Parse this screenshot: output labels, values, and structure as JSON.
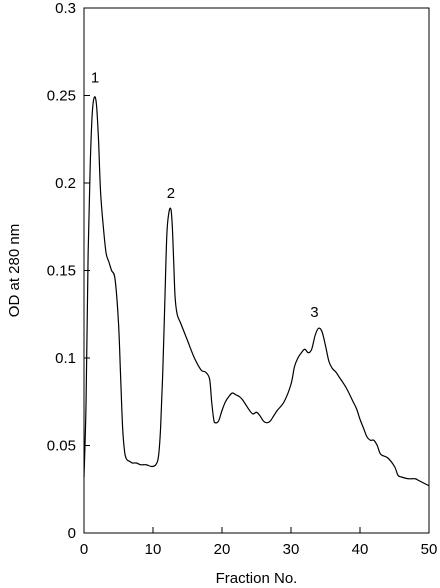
{
  "chart_data": {
    "type": "line",
    "title": "",
    "xlabel": "Fraction No.",
    "ylabel": "OD at 280 nm",
    "xlim": [
      0,
      50
    ],
    "ylim": [
      0,
      0.3
    ],
    "grid": false,
    "x_ticks": [
      0,
      10,
      20,
      30,
      40,
      50
    ],
    "y_ticks": [
      0,
      0.05,
      0.1,
      0.15,
      0.2,
      0.25,
      0.3
    ],
    "x_tick_labels": [
      "0",
      "10",
      "20",
      "30",
      "40",
      "50"
    ],
    "y_tick_labels": [
      "0",
      "0.05",
      "0.1",
      "0.15",
      "0.2",
      "0.25",
      "0.3"
    ],
    "annotations": [
      {
        "text": "1",
        "x": 1.6,
        "y": 0.254
      },
      {
        "text": "2",
        "x": 12.6,
        "y": 0.188
      },
      {
        "text": "3",
        "x": 33.4,
        "y": 0.12
      }
    ],
    "series": [
      {
        "x": [
          0,
          0.3,
          0.6,
          0.9,
          1.2,
          1.5,
          1.8,
          2.1,
          2.4,
          2.8,
          3.2,
          3.6,
          4.0,
          4.5,
          5.0,
          5.3,
          5.6,
          5.9,
          6.2,
          6.6,
          7.0,
          7.6,
          8.2,
          9.0,
          9.8,
          10.4,
          10.8,
          11.1,
          11.4,
          11.7,
          12.0,
          12.3,
          12.6,
          12.8,
          13.0,
          13.2,
          13.5,
          14.0,
          14.5,
          15.0,
          16.0,
          17.0,
          17.6,
          18.2,
          18.5,
          18.8,
          19.0,
          19.5,
          20.0,
          20.5,
          21.0,
          21.5,
          22.0,
          22.5,
          23.0,
          24.0,
          24.5,
          25.0,
          25.5,
          26.0,
          26.5,
          27.0,
          27.5,
          28.0,
          29.0,
          30.0,
          30.5,
          31.0,
          31.5,
          32.0,
          32.5,
          33.0,
          33.5,
          34.0,
          34.5,
          35.0,
          35.5,
          36.0,
          36.5,
          37.0,
          38.0,
          39.0,
          39.5,
          40.0,
          40.5,
          41.0,
          41.5,
          42.0,
          42.5,
          43.0,
          44.0,
          45.0,
          45.5,
          46.0,
          47.0,
          48.0,
          48.5,
          49.0,
          50.0
        ],
        "y": [
          0.032,
          0.075,
          0.16,
          0.21,
          0.24,
          0.249,
          0.245,
          0.225,
          0.195,
          0.175,
          0.16,
          0.155,
          0.15,
          0.145,
          0.12,
          0.09,
          0.06,
          0.046,
          0.042,
          0.041,
          0.04,
          0.04,
          0.039,
          0.039,
          0.038,
          0.039,
          0.044,
          0.06,
          0.09,
          0.13,
          0.17,
          0.183,
          0.185,
          0.175,
          0.155,
          0.135,
          0.125,
          0.12,
          0.115,
          0.11,
          0.1,
          0.093,
          0.092,
          0.088,
          0.075,
          0.065,
          0.063,
          0.064,
          0.07,
          0.075,
          0.078,
          0.08,
          0.079,
          0.078,
          0.076,
          0.07,
          0.068,
          0.069,
          0.067,
          0.064,
          0.063,
          0.064,
          0.067,
          0.07,
          0.075,
          0.085,
          0.095,
          0.1,
          0.103,
          0.105,
          0.103,
          0.105,
          0.113,
          0.117,
          0.115,
          0.107,
          0.098,
          0.094,
          0.092,
          0.089,
          0.083,
          0.075,
          0.071,
          0.065,
          0.06,
          0.055,
          0.053,
          0.053,
          0.05,
          0.045,
          0.043,
          0.038,
          0.033,
          0.032,
          0.031,
          0.031,
          0.03,
          0.029,
          0.027
        ]
      }
    ]
  }
}
